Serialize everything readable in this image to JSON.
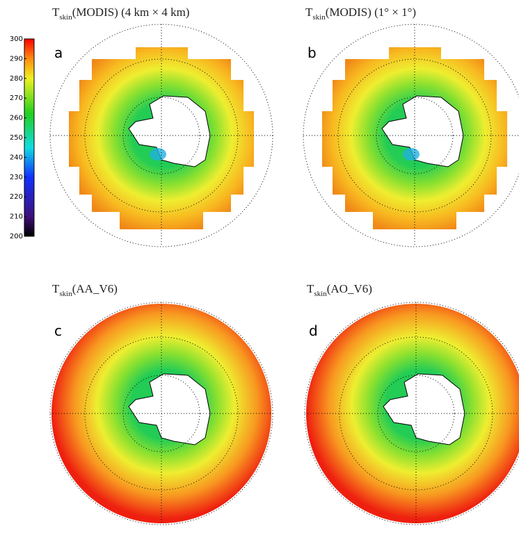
{
  "colorbar": {
    "lim": [
      200,
      300
    ],
    "ticks": [
      200,
      210,
      220,
      230,
      240,
      250,
      260,
      270,
      280,
      290,
      300
    ]
  },
  "panels": [
    {
      "title": {
        "main": "T",
        "sub": "skin",
        "rest": "(MODIS) (4 km × 4 km)"
      },
      "label": "a"
    },
    {
      "title": {
        "main": "T",
        "sub": "skin",
        "rest": "(MODIS) (1° × 1°)"
      },
      "label": "b"
    },
    {
      "title": {
        "main": "T",
        "sub": "skin",
        "rest": "(AA_V6)"
      },
      "label": "c"
    },
    {
      "title": {
        "main": "T",
        "sub": "skin",
        "rest": "(AO_V6)"
      },
      "label": "d"
    }
  ]
}
